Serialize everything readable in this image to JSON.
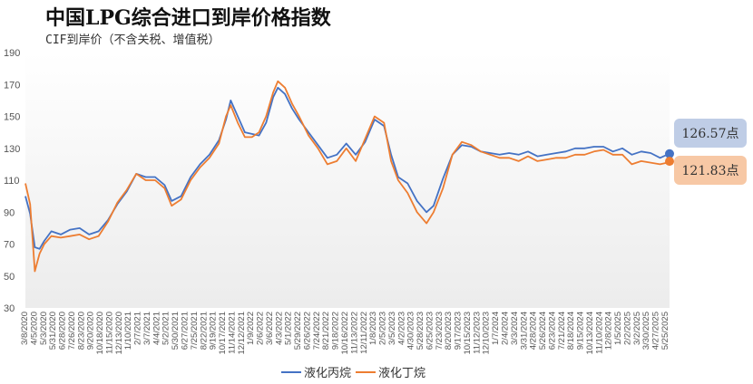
{
  "title": "中国LPG综合进口到岸价格指数",
  "subtitle": "CIF到岸价（不含关税、增值税）",
  "colors": {
    "propane": "#4472c4",
    "butane": "#ed7d31",
    "propane_callout_bg": "#bfcde6",
    "butane_callout_bg": "#f7c8a5"
  },
  "chart_data": {
    "type": "line",
    "title": "中国LPG综合进口到岸价格指数",
    "subtitle": "CIF到岸价（不含关税、增值税）",
    "ylim": [
      30,
      190
    ],
    "yticks": [
      30,
      50,
      70,
      90,
      110,
      130,
      150,
      170,
      190
    ],
    "grid": false,
    "legend": "bottom",
    "xlim": [
      "2020-03-08",
      "2025-06-01"
    ],
    "xtick_labels": [
      "3/8/2020",
      "4/5/2020",
      "5/3/2020",
      "5/31/2020",
      "6/28/2020",
      "7/26/2020",
      "8/23/2020",
      "9/20/2020",
      "10/18/2020",
      "11/15/2020",
      "12/13/2020",
      "1/10/2021",
      "2/7/2021",
      "3/7/2021",
      "4/4/2021",
      "5/2/2021",
      "5/30/2021",
      "6/27/2021",
      "7/25/2021",
      "8/22/2021",
      "9/19/2021",
      "10/17/2021",
      "11/14/2021",
      "12/12/2021",
      "1/9/2022",
      "2/6/2022",
      "3/6/2022",
      "4/3/2022",
      "5/1/2022",
      "5/29/2022",
      "6/26/2022",
      "7/24/2022",
      "8/21/2022",
      "9/18/2022",
      "10/16/2022",
      "11/13/2022",
      "12/11/2022",
      "1/8/2023",
      "2/5/2023",
      "3/5/2023",
      "4/2/2023",
      "4/30/2023",
      "5/28/2023",
      "6/25/2023",
      "7/23/2023",
      "8/20/2023",
      "9/17/2023",
      "10/15/2023",
      "11/12/2023",
      "12/10/2023",
      "1/7/2024",
      "2/4/2024",
      "3/3/2024",
      "3/31/2024",
      "4/28/2024",
      "5/26/2024",
      "6/23/2024",
      "7/21/2024",
      "8/18/2024",
      "9/15/2024",
      "10/13/2024",
      "11/10/2024",
      "12/8/2024",
      "1/5/2025",
      "2/2/2025",
      "3/2/2025",
      "3/30/2025",
      "4/27/2025",
      "5/25/2025"
    ],
    "series": [
      {
        "name": "液化丙烷",
        "end_label": "126.57点",
        "points": [
          [
            "2020-03-08",
            100
          ],
          [
            "2020-03-22",
            89
          ],
          [
            "2020-04-05",
            68
          ],
          [
            "2020-04-19",
            67
          ],
          [
            "2020-05-03",
            72
          ],
          [
            "2020-05-24",
            78
          ],
          [
            "2020-06-21",
            76
          ],
          [
            "2020-07-19",
            79
          ],
          [
            "2020-08-16",
            80
          ],
          [
            "2020-09-13",
            76
          ],
          [
            "2020-10-11",
            78
          ],
          [
            "2020-11-08",
            85
          ],
          [
            "2020-12-06",
            95
          ],
          [
            "2021-01-03",
            103
          ],
          [
            "2021-01-31",
            114
          ],
          [
            "2021-02-28",
            112
          ],
          [
            "2021-03-28",
            112
          ],
          [
            "2021-04-25",
            107
          ],
          [
            "2021-05-16",
            97
          ],
          [
            "2021-06-13",
            100
          ],
          [
            "2021-07-11",
            112
          ],
          [
            "2021-08-08",
            120
          ],
          [
            "2021-09-05",
            126
          ],
          [
            "2021-10-03",
            135
          ],
          [
            "2021-10-24",
            148
          ],
          [
            "2021-11-07",
            160
          ],
          [
            "2021-11-28",
            150
          ],
          [
            "2021-12-19",
            140
          ],
          [
            "2022-01-09",
            139
          ],
          [
            "2022-01-30",
            138
          ],
          [
            "2022-02-20",
            146
          ],
          [
            "2022-03-13",
            162
          ],
          [
            "2022-03-27",
            168
          ],
          [
            "2022-04-17",
            164
          ],
          [
            "2022-05-08",
            155
          ],
          [
            "2022-05-29",
            148
          ],
          [
            "2022-06-26",
            140
          ],
          [
            "2022-07-24",
            132
          ],
          [
            "2022-08-21",
            124
          ],
          [
            "2022-09-18",
            126
          ],
          [
            "2022-10-16",
            133
          ],
          [
            "2022-11-13",
            126
          ],
          [
            "2022-12-11",
            134
          ],
          [
            "2023-01-08",
            148
          ],
          [
            "2023-02-05",
            144
          ],
          [
            "2023-02-26",
            126
          ],
          [
            "2023-03-19",
            112
          ],
          [
            "2023-04-16",
            108
          ],
          [
            "2023-05-14",
            97
          ],
          [
            "2023-06-11",
            90
          ],
          [
            "2023-07-02",
            94
          ],
          [
            "2023-07-30",
            111
          ],
          [
            "2023-08-27",
            126
          ],
          [
            "2023-09-24",
            132
          ],
          [
            "2023-10-22",
            131
          ],
          [
            "2023-11-19",
            128
          ],
          [
            "2023-12-17",
            127
          ],
          [
            "2024-01-14",
            126
          ],
          [
            "2024-02-11",
            127
          ],
          [
            "2024-03-10",
            126
          ],
          [
            "2024-04-07",
            128
          ],
          [
            "2024-05-05",
            125
          ],
          [
            "2024-06-02",
            126
          ],
          [
            "2024-06-30",
            127
          ],
          [
            "2024-07-28",
            128
          ],
          [
            "2024-08-25",
            130
          ],
          [
            "2024-09-22",
            130
          ],
          [
            "2024-10-20",
            131
          ],
          [
            "2024-11-17",
            131
          ],
          [
            "2024-12-15",
            128
          ],
          [
            "2025-01-12",
            130
          ],
          [
            "2025-02-09",
            126
          ],
          [
            "2025-03-09",
            128
          ],
          [
            "2025-04-06",
            127
          ],
          [
            "2025-05-04",
            124
          ],
          [
            "2025-05-25",
            126
          ],
          [
            "2025-06-01",
            126.57
          ]
        ]
      },
      {
        "name": "液化丁烷",
        "end_label": "121.83点",
        "points": [
          [
            "2020-03-08",
            108
          ],
          [
            "2020-03-22",
            95
          ],
          [
            "2020-04-05",
            53
          ],
          [
            "2020-04-19",
            64
          ],
          [
            "2020-05-03",
            70
          ],
          [
            "2020-05-24",
            75
          ],
          [
            "2020-06-21",
            74
          ],
          [
            "2020-07-19",
            75
          ],
          [
            "2020-08-16",
            76
          ],
          [
            "2020-09-13",
            73
          ],
          [
            "2020-10-11",
            75
          ],
          [
            "2020-11-08",
            84
          ],
          [
            "2020-12-06",
            96
          ],
          [
            "2021-01-03",
            104
          ],
          [
            "2021-01-31",
            114
          ],
          [
            "2021-02-28",
            110
          ],
          [
            "2021-03-28",
            110
          ],
          [
            "2021-04-25",
            105
          ],
          [
            "2021-05-16",
            94
          ],
          [
            "2021-06-13",
            98
          ],
          [
            "2021-07-11",
            110
          ],
          [
            "2021-08-08",
            118
          ],
          [
            "2021-09-05",
            124
          ],
          [
            "2021-10-03",
            133
          ],
          [
            "2021-10-24",
            150
          ],
          [
            "2021-11-07",
            157
          ],
          [
            "2021-11-28",
            146
          ],
          [
            "2021-12-19",
            137
          ],
          [
            "2022-01-09",
            137
          ],
          [
            "2022-01-30",
            140
          ],
          [
            "2022-02-20",
            150
          ],
          [
            "2022-03-13",
            165
          ],
          [
            "2022-03-27",
            172
          ],
          [
            "2022-04-17",
            168
          ],
          [
            "2022-05-08",
            158
          ],
          [
            "2022-05-29",
            150
          ],
          [
            "2022-06-26",
            138
          ],
          [
            "2022-07-24",
            130
          ],
          [
            "2022-08-21",
            120
          ],
          [
            "2022-09-18",
            122
          ],
          [
            "2022-10-16",
            130
          ],
          [
            "2022-11-13",
            122
          ],
          [
            "2022-12-11",
            136
          ],
          [
            "2023-01-08",
            150
          ],
          [
            "2023-02-05",
            146
          ],
          [
            "2023-02-26",
            122
          ],
          [
            "2023-03-19",
            110
          ],
          [
            "2023-04-16",
            102
          ],
          [
            "2023-05-14",
            90
          ],
          [
            "2023-06-11",
            83
          ],
          [
            "2023-07-02",
            90
          ],
          [
            "2023-07-30",
            105
          ],
          [
            "2023-08-27",
            126
          ],
          [
            "2023-09-24",
            134
          ],
          [
            "2023-10-22",
            132
          ],
          [
            "2023-11-19",
            128
          ],
          [
            "2023-12-17",
            126
          ],
          [
            "2024-01-14",
            124
          ],
          [
            "2024-02-11",
            124
          ],
          [
            "2024-03-10",
            122
          ],
          [
            "2024-04-07",
            125
          ],
          [
            "2024-05-05",
            122
          ],
          [
            "2024-06-02",
            123
          ],
          [
            "2024-06-30",
            124
          ],
          [
            "2024-07-28",
            124
          ],
          [
            "2024-08-25",
            126
          ],
          [
            "2024-09-22",
            126
          ],
          [
            "2024-10-20",
            128
          ],
          [
            "2024-11-17",
            129
          ],
          [
            "2024-12-15",
            126
          ],
          [
            "2025-01-12",
            126
          ],
          [
            "2025-02-09",
            120
          ],
          [
            "2025-03-09",
            122
          ],
          [
            "2025-04-06",
            121
          ],
          [
            "2025-05-04",
            120
          ],
          [
            "2025-05-25",
            121
          ],
          [
            "2025-06-01",
            121.83
          ]
        ]
      }
    ]
  }
}
